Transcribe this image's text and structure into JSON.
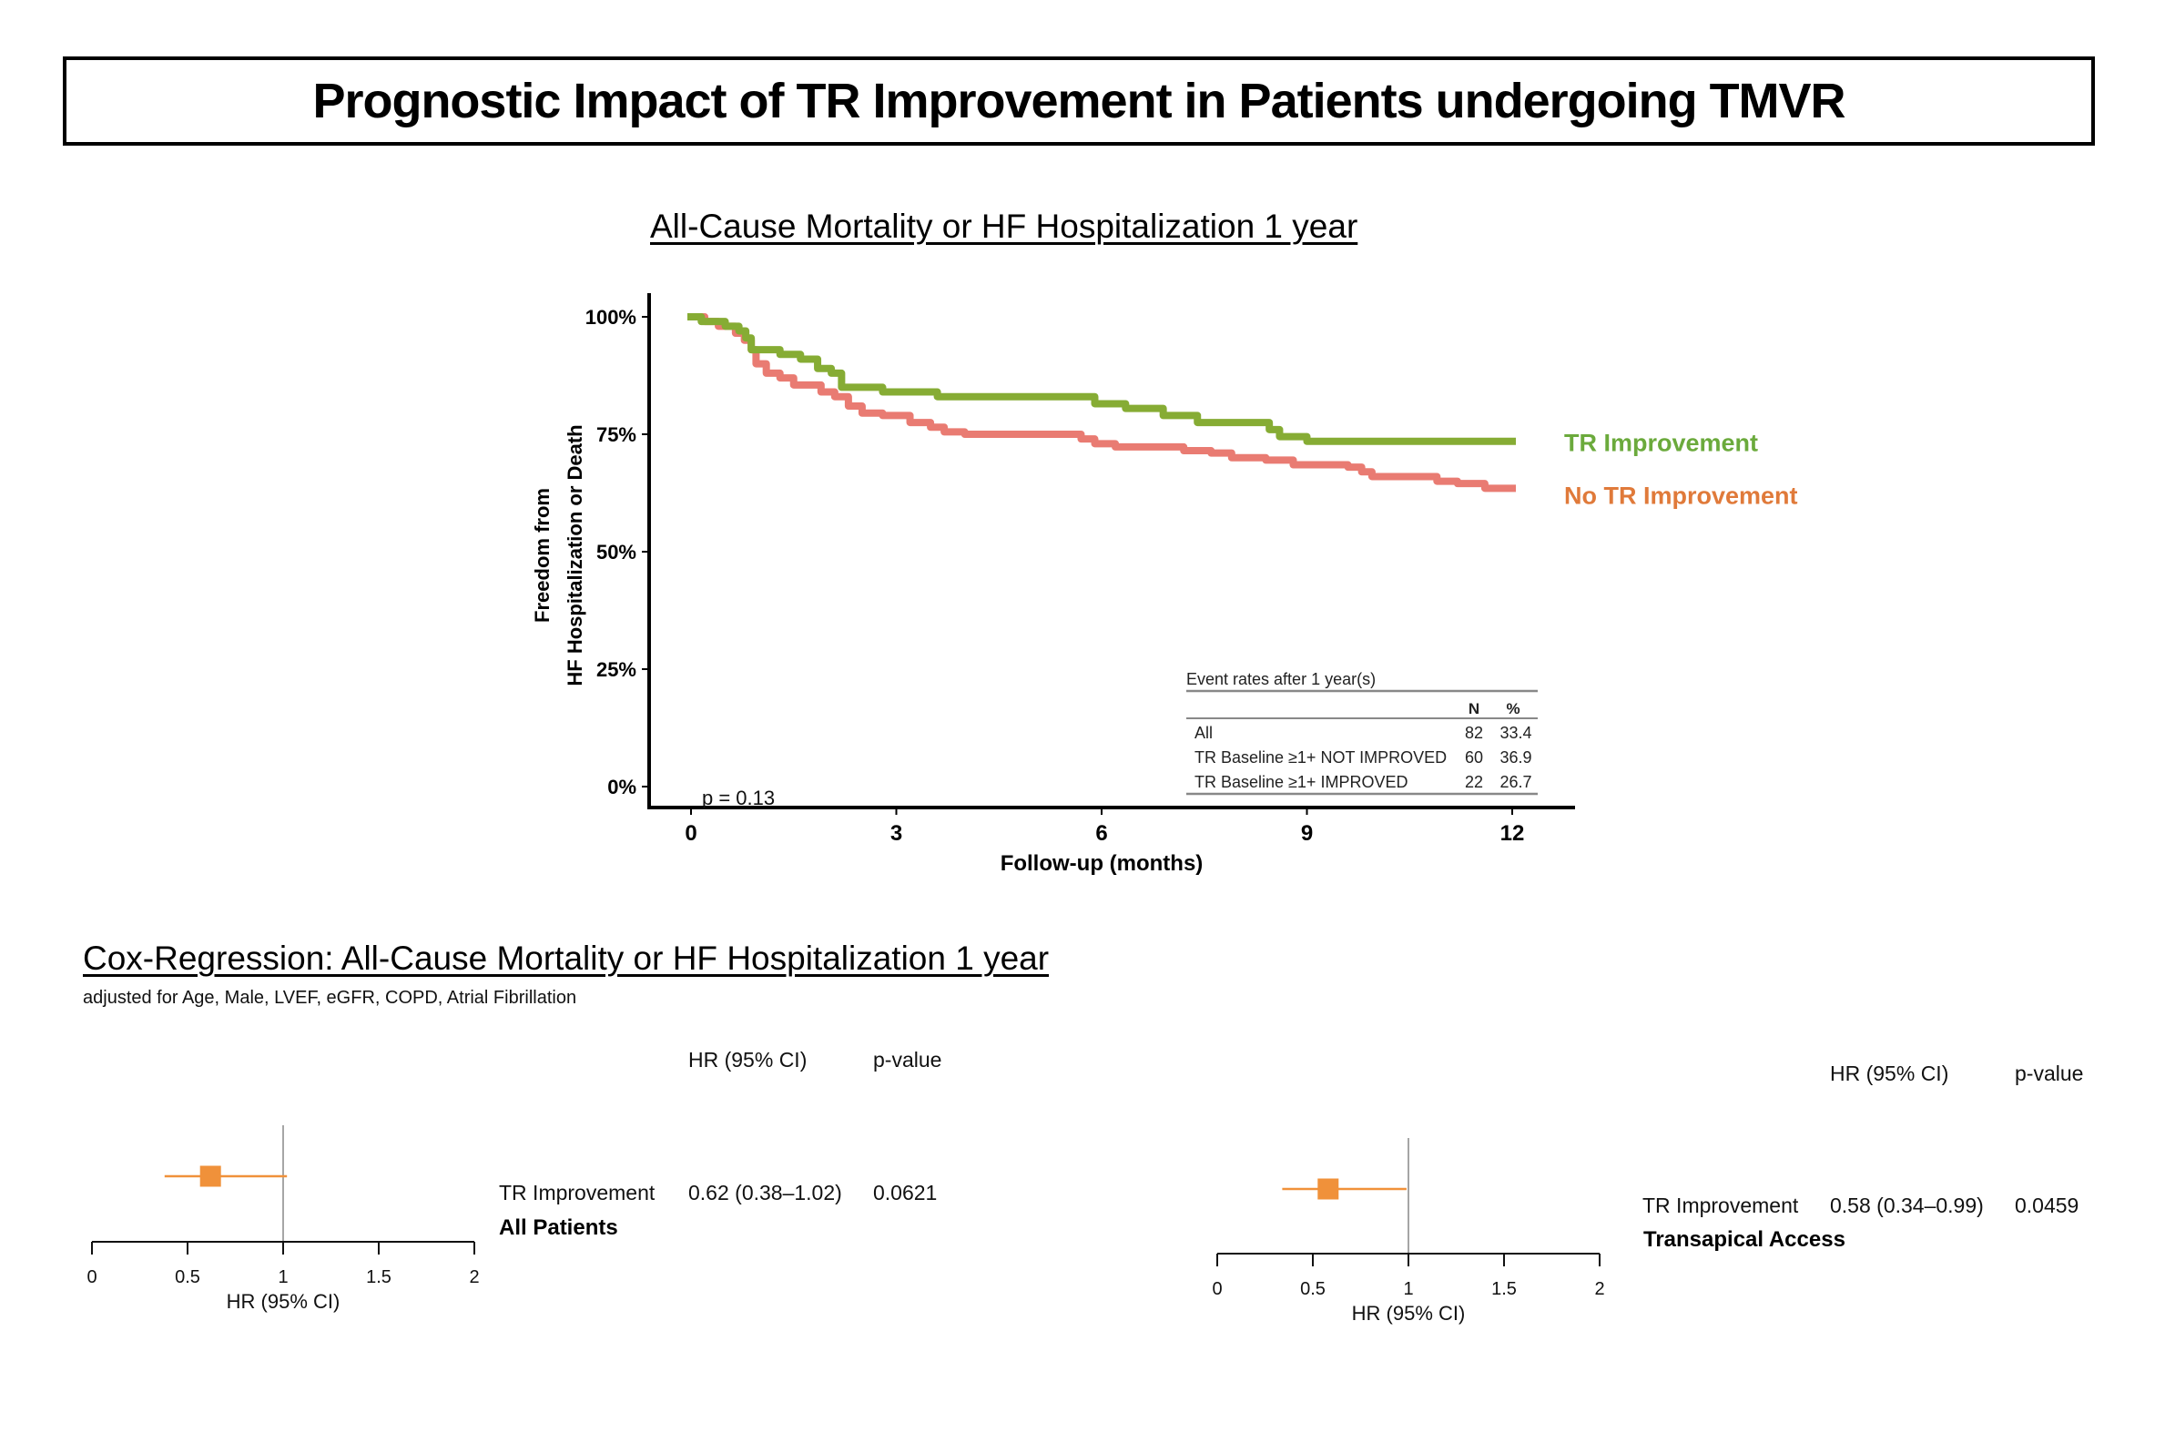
{
  "page": {
    "title": "Prognostic Impact of TR Improvement in Patients undergoing TMVR",
    "km_section_title": "All-Cause Mortality or HF Hospitalization 1 year",
    "cox_section_title": "Cox-Regression: All-Cause Mortality or HF Hospitalization 1 year",
    "cox_adjustment_note": "adjusted for Age, Male, LVEF, eGFR, COPD, Atrial Fibrillation"
  },
  "chart_data": [
    {
      "type": "line",
      "subtype": "kaplan-meier-step",
      "title": "All-Cause Mortality or HF Hospitalization 1 year",
      "xlabel": "Follow-up (months)",
      "ylabel_lines": [
        "Freedom from",
        "HF Hospitalization or Death"
      ],
      "xlim": [
        0,
        12
      ],
      "ylim": [
        0,
        100
      ],
      "x_ticks": [
        0,
        3,
        6,
        9,
        12
      ],
      "y_ticks": [
        0,
        25,
        50,
        75,
        100
      ],
      "y_tick_labels": [
        "0%",
        "25%",
        "50%",
        "75%",
        "100%"
      ],
      "grid": false,
      "annotation": "p = 0.13",
      "legend_placement": "right-of-curve-ends",
      "series": [
        {
          "name": "TR Improvement",
          "color": "#86AC34",
          "label_color": "#6BAA3C",
          "x": [
            0,
            0.15,
            0.5,
            0.7,
            0.8,
            0.88,
            1.3,
            1.6,
            1.85,
            2.05,
            2.2,
            2.8,
            3.6,
            5.9,
            6.35,
            6.9,
            7.4,
            8.45,
            8.6,
            9.0,
            12
          ],
          "y": [
            100,
            99,
            98,
            97,
            95.5,
            93,
            92,
            91,
            89,
            88,
            85,
            84,
            83,
            81.5,
            80.5,
            79,
            77.5,
            76,
            74.5,
            73.5,
            73.5
          ]
        },
        {
          "name": "No TR Improvement",
          "color": "#E97B72",
          "label_color": "#E07A3A",
          "x": [
            0,
            0.2,
            0.4,
            0.65,
            0.78,
            0.88,
            0.95,
            1.1,
            1.3,
            1.5,
            1.9,
            2.1,
            2.3,
            2.5,
            2.8,
            3.2,
            3.5,
            3.7,
            4.0,
            5.7,
            5.9,
            6.2,
            7.2,
            7.6,
            7.9,
            8.4,
            8.8,
            9.6,
            9.8,
            9.95,
            10.9,
            11.2,
            11.6,
            12
          ],
          "y": [
            100,
            99,
            98,
            96.5,
            95,
            93,
            90,
            88,
            87,
            85.5,
            84,
            83,
            81,
            79.5,
            79,
            77.5,
            76.5,
            75.5,
            75,
            74,
            73,
            72.3,
            71.5,
            71,
            70,
            69.5,
            68.5,
            68,
            67,
            66,
            65,
            64.5,
            63.5,
            63.5
          ]
        }
      ],
      "event_table": {
        "title": "Event rates after 1 year(s)",
        "columns": [
          "",
          "N",
          "%"
        ],
        "rows": [
          {
            "label": "All",
            "n": "82",
            "pct": "33.4"
          },
          {
            "label": "TR Baseline ≥1+ NOT IMPROVED",
            "n": "60",
            "pct": "36.9"
          },
          {
            "label": "TR Baseline ≥1+ IMPROVED",
            "n": "22",
            "pct": "26.7"
          }
        ]
      }
    },
    {
      "type": "scatter",
      "subtype": "forest-plot",
      "subgroup": "All Patients",
      "xlabel": "HR (95% CI)",
      "xlim": [
        0,
        2
      ],
      "x_ticks": [
        0,
        0.5,
        1,
        1.5,
        2
      ],
      "x_tick_labels": [
        "0",
        "0.5",
        "1",
        "1.5",
        "2"
      ],
      "reference_line": 1,
      "marker_color": "#F0913A",
      "column_headers": {
        "hr": "HR (95% CI)",
        "p": "p-value"
      },
      "rows": [
        {
          "label": "TR Improvement",
          "hr": 0.62,
          "ci_low": 0.38,
          "ci_high": 1.02,
          "hr_text": "0.62 (0.38–1.02)",
          "p_text": "0.0621"
        }
      ]
    },
    {
      "type": "scatter",
      "subtype": "forest-plot",
      "subgroup": "Transapical Access",
      "xlabel": "HR (95% CI)",
      "xlim": [
        0,
        2
      ],
      "x_ticks": [
        0,
        0.5,
        1,
        1.5,
        2
      ],
      "x_tick_labels": [
        "0",
        "0.5",
        "1",
        "1.5",
        "2"
      ],
      "reference_line": 1,
      "marker_color": "#F0913A",
      "column_headers": {
        "hr": "HR (95% CI)",
        "p": "p-value"
      },
      "rows": [
        {
          "label": "TR Improvement",
          "hr": 0.58,
          "ci_low": 0.34,
          "ci_high": 0.99,
          "hr_text": "0.58 (0.34–0.99)",
          "p_text": "0.0459"
        }
      ]
    }
  ]
}
